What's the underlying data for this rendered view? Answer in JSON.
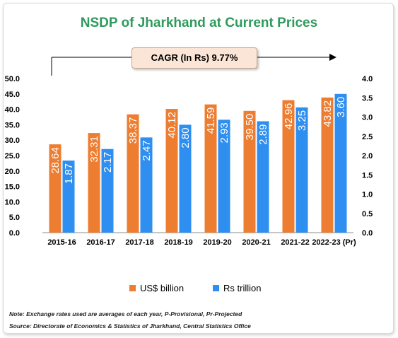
{
  "title": "NSDP of Jharkhand at Current Prices",
  "cagr_label": "CAGR (In Rs) 9.77%",
  "notes": {
    "line1": "Note: Exchange rates used are averages of each year, P-Provisional, Pr-Projected",
    "line2": "Source: Directorate of Economics & Statistics of Jharkhand, Central Statistics Office"
  },
  "colors": {
    "usd": "#ed7d31",
    "rs": "#2e8ff0",
    "title": "#2e9a5c"
  },
  "chart_data": {
    "type": "bar",
    "title": "NSDP of Jharkhand at Current Prices",
    "categories": [
      "2015-16",
      "2016-17",
      "2017-18",
      "2018-19",
      "2019-20",
      "2020-21",
      "2021-22",
      "2022-23 (Pr)"
    ],
    "series": [
      {
        "name": "US$ billion",
        "axis": "left",
        "values": [
          28.64,
          32.31,
          38.37,
          40.12,
          41.59,
          39.5,
          42.96,
          43.82
        ],
        "labels": [
          "28.64",
          "32.31",
          "38.37",
          "40.12",
          "41.59",
          "39.50",
          "42.96",
          "43.82"
        ]
      },
      {
        "name": "Rs trillion",
        "axis": "right",
        "values": [
          1.87,
          2.17,
          2.47,
          2.8,
          2.93,
          2.89,
          3.25,
          3.6
        ],
        "labels": [
          "1.87",
          "2.17",
          "2.47",
          "2.80",
          "2.93",
          "2.89",
          "3.25",
          "3.60"
        ]
      }
    ],
    "left_axis": {
      "ylim": [
        0,
        50
      ],
      "ticks": [
        "0.0",
        "5.0",
        "10.0",
        "15.0",
        "20.0",
        "25.0",
        "30.0",
        "35.0",
        "40.0",
        "45.0",
        "50.0"
      ]
    },
    "right_axis": {
      "ylim": [
        0,
        4
      ],
      "ticks": [
        "0.0",
        "0.5",
        "1.0",
        "1.5",
        "2.0",
        "2.5",
        "3.0",
        "3.5",
        "4.0"
      ]
    },
    "grid": false,
    "legend_position": "bottom"
  }
}
